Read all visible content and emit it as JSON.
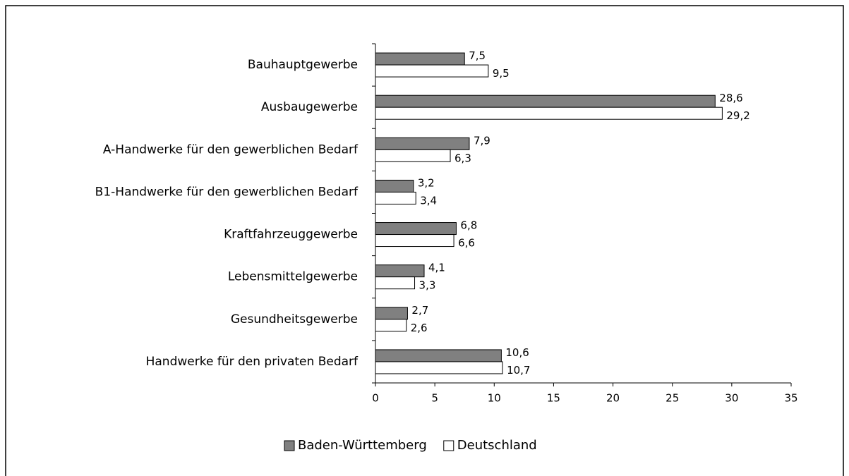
{
  "chart_data": {
    "type": "bar",
    "orientation": "horizontal",
    "categories": [
      "Bauhauptgewerbe",
      "Ausbaugewerbe",
      "A-Handwerke für den gewerblichen Bedarf",
      "B1-Handwerke für den gewerblichen Bedarf",
      "Kraftfahrzeuggewerbe",
      "Lebensmittelgewerbe",
      "Gesundheitsgewerbe",
      "Handwerke für den privaten Bedarf"
    ],
    "series": [
      {
        "name": "Baden-Württemberg",
        "color": "#808080",
        "values": [
          7.5,
          28.6,
          7.9,
          3.2,
          6.8,
          4.1,
          2.7,
          10.6
        ],
        "value_labels": [
          "7,5",
          "28,6",
          "7,9",
          "3,2",
          "6,8",
          "4,1",
          "2,7",
          "10,6"
        ]
      },
      {
        "name": "Deutschland",
        "color": "#ffffff",
        "values": [
          9.5,
          29.2,
          6.3,
          3.4,
          6.6,
          3.3,
          2.6,
          10.7
        ],
        "value_labels": [
          "9,5",
          "29,2",
          "6,3",
          "3,4",
          "6,6",
          "3,3",
          "2,6",
          "10,7"
        ]
      }
    ],
    "xlim": [
      0,
      35
    ],
    "xticks": [
      0,
      5,
      10,
      15,
      20,
      25,
      30,
      35
    ],
    "legend": "bottom"
  }
}
